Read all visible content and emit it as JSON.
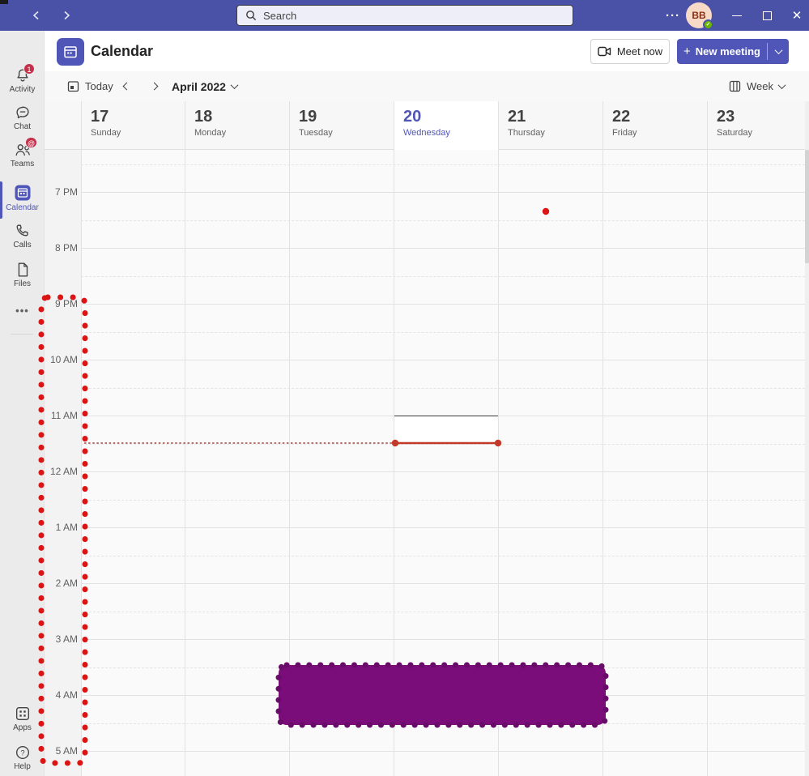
{
  "titlebar": {
    "search_placeholder": "Search",
    "avatar_initials": "BB",
    "more_glyph": "···",
    "close_glyph": "✕"
  },
  "sidebar": {
    "items": [
      {
        "label": "Activity",
        "badge": "1"
      },
      {
        "label": "Chat",
        "badge": ""
      },
      {
        "label": "Teams",
        "badge": "@"
      },
      {
        "label": "Calendar",
        "badge": ""
      },
      {
        "label": "Calls",
        "badge": ""
      },
      {
        "label": "Files",
        "badge": ""
      },
      {
        "label": "",
        "badge": ""
      }
    ],
    "more_glyph": "•••",
    "bottom_items": [
      {
        "label": "Apps"
      },
      {
        "label": "Help"
      }
    ]
  },
  "header": {
    "title": "Calendar",
    "meet_now_label": "Meet now",
    "new_meeting_label": "New meeting",
    "plus_glyph": "+"
  },
  "toolbar": {
    "today_label": "Today",
    "period_label": "April 2022",
    "view_label": "Week"
  },
  "calendar": {
    "days": [
      {
        "date": "17",
        "name": "Sunday"
      },
      {
        "date": "18",
        "name": "Monday"
      },
      {
        "date": "19",
        "name": "Tuesday"
      },
      {
        "date": "20",
        "name": "Wednesday",
        "today": true
      },
      {
        "date": "21",
        "name": "Thursday"
      },
      {
        "date": "22",
        "name": "Friday"
      },
      {
        "date": "23",
        "name": "Saturday"
      }
    ],
    "times": [
      "7 PM",
      "8 PM",
      "9 PM",
      "10 AM",
      "11 AM",
      "12 AM",
      "1 AM",
      "2 AM",
      "3 AM",
      "4 AM",
      "5 AM"
    ]
  },
  "icons": {
    "search": "magnifier",
    "camera": "video-camera",
    "help": "?"
  },
  "colors": {
    "accent": "#4F56B8",
    "titlebar": "#4A52A8",
    "annotation_red": "#DC1414",
    "annotation_line_red": "#A04640",
    "annotation_solid_red": "#C23B2A",
    "annotation_purple_fill": "#7A0D7A",
    "annotation_purple_stroke": "#690B69",
    "badge_red": "#C4314B",
    "presence_green": "#6BB700"
  }
}
